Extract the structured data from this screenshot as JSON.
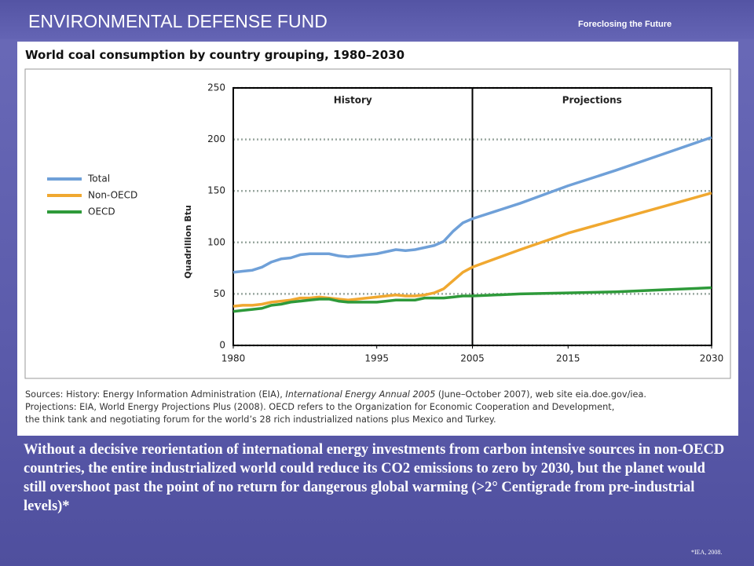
{
  "header": {
    "title": "ENVIRONMENTAL DEFENSE FUND",
    "tagline": "Foreclosing the Future"
  },
  "chart_data": {
    "type": "line",
    "title": "World coal consumption by country grouping, 1980–2030",
    "ylabel": "Quadrillion Btu",
    "x": [
      1980,
      1981,
      1982,
      1983,
      1984,
      1985,
      1986,
      1987,
      1988,
      1989,
      1990,
      1991,
      1992,
      1993,
      1994,
      1995,
      1996,
      1997,
      1998,
      1999,
      2000,
      2001,
      2002,
      2003,
      2004,
      2005,
      2010,
      2015,
      2020,
      2025,
      2030
    ],
    "series": [
      {
        "name": "Total",
        "color": "#6fa0d8",
        "values": [
          71,
          72,
          73,
          76,
          81,
          84,
          85,
          88,
          89,
          89,
          89,
          87,
          86,
          87,
          88,
          89,
          91,
          93,
          92,
          93,
          95,
          97,
          101,
          111,
          119,
          123,
          138,
          155,
          170,
          186,
          202
        ]
      },
      {
        "name": "Non-OECD",
        "color": "#f0a830",
        "values": [
          38,
          39,
          39,
          40,
          42,
          43,
          44,
          46,
          46,
          47,
          46,
          45,
          44,
          45,
          46,
          47,
          48,
          49,
          48,
          48,
          49,
          51,
          55,
          63,
          71,
          76,
          93,
          109,
          122,
          135,
          148
        ]
      },
      {
        "name": "OECD",
        "color": "#2e9a3a",
        "values": [
          33,
          34,
          35,
          36,
          39,
          40,
          42,
          43,
          44,
          45,
          45,
          43,
          42,
          42,
          42,
          42,
          43,
          44,
          44,
          44,
          46,
          46,
          46,
          47,
          48,
          48,
          50,
          51,
          52,
          54,
          56
        ]
      }
    ],
    "xlim": [
      1980,
      2030
    ],
    "xticks": [
      1980,
      1995,
      2005,
      2015,
      2030
    ],
    "ylim": [
      0,
      250
    ],
    "yticks": [
      0,
      50,
      100,
      150,
      200,
      250
    ],
    "grid": true,
    "divider": 2005,
    "annotations": [
      "History",
      "Projections"
    ],
    "legend": "left"
  },
  "sources": [
    "Sources: History: Energy Information Administration (EIA), ",
    "International Energy Annual 2005",
    " (June–October 2007), web site eia.doe.gov/iea.",
    "Projections: EIA, World Energy Projections Plus (2008). OECD refers to the Organization for Economic Cooperation and Development,",
    "the think tank and negotiating forum for the world’s 28 rich industrialized nations plus Mexico and Turkey."
  ],
  "body": "Without a decisive reorientation of international energy investments from carbon intensive sources in non-OECD countries, the entire industrialized world could reduce its CO2 emissions to zero by 2030, but the planet would still overshoot past the point of no return for dangerous global warming (>2° Centigrade from pre-industrial levels)*",
  "footnote": "*IEA, 2008."
}
